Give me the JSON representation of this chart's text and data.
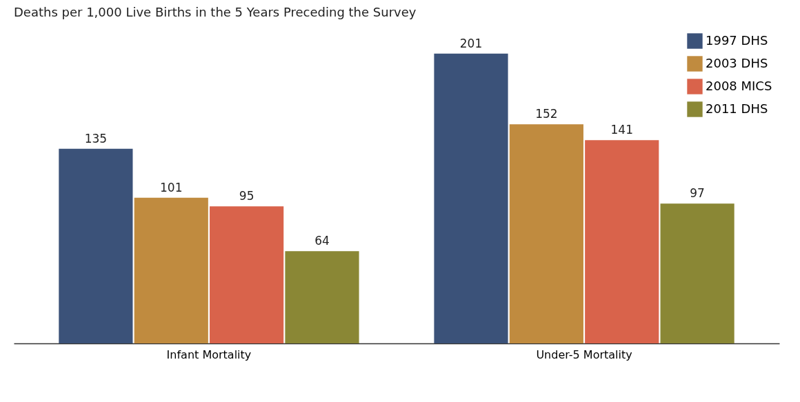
{
  "chart_data": {
    "type": "bar",
    "title": "Deaths per 1,000 Live Births in the 5 Years Preceding the Survey",
    "categories": [
      "Infant Mortality",
      "Under-5 Mortality"
    ],
    "series": [
      {
        "name": "1997 DHS",
        "color": "#3b5279",
        "values": [
          135,
          201
        ]
      },
      {
        "name": "2003 DHS",
        "color": "#c08b3f",
        "values": [
          101,
          152
        ]
      },
      {
        "name": "2008 MICS",
        "color": "#d9634b",
        "values": [
          95,
          141
        ]
      },
      {
        "name": "2011 DHS",
        "color": "#8a8735",
        "values": [
          64,
          97
        ]
      }
    ],
    "data_labels": true,
    "legend": "top right",
    "tick_labels": "x"
  }
}
